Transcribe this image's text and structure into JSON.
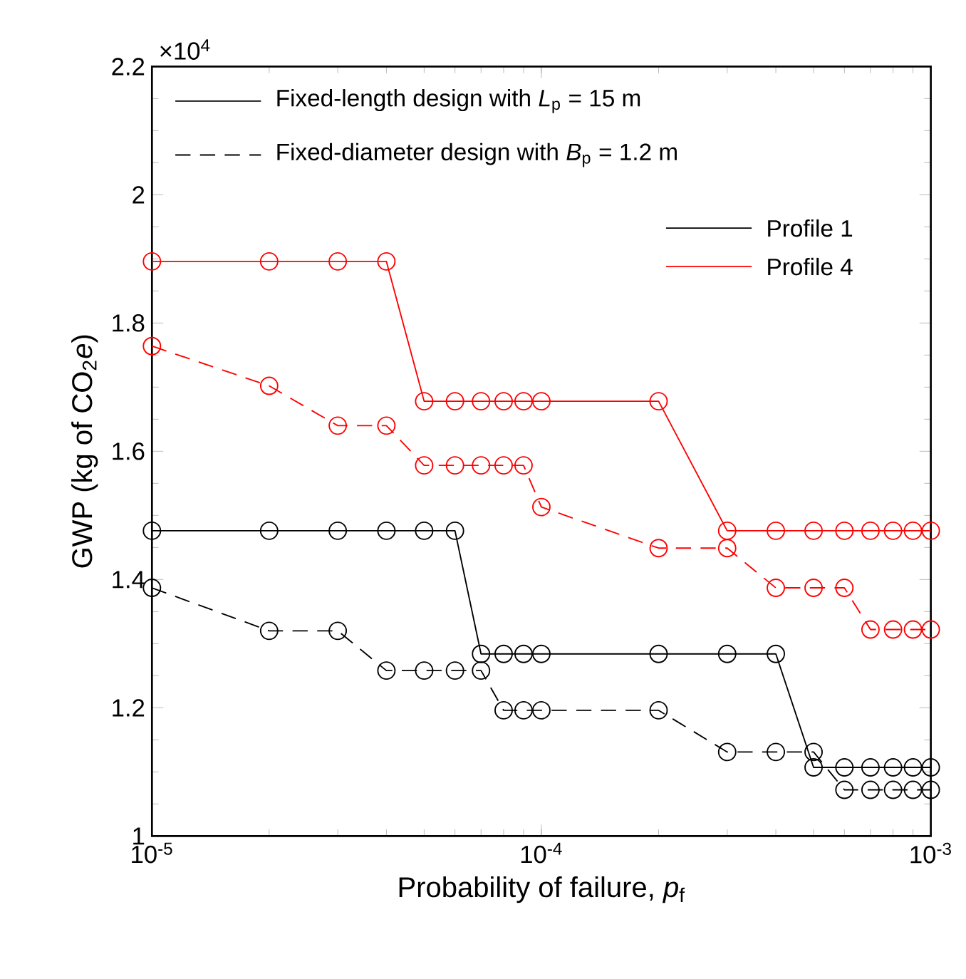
{
  "chart_data": {
    "type": "line",
    "xlabel": "Probability of failure, *p*$_{f}$",
    "ylabel": "GWP (kg of CO$_{2}$*e*)",
    "log": "x",
    "marker": "circle",
    "legend": "top right",
    "xlim": [
      1e-05,
      0.001
    ],
    "ylim": [
      1,
      2.2
    ],
    "xticks": [
      {
        "value": 1e-05,
        "label": "10$^{-5}$"
      },
      {
        "value": 0.0001,
        "label": "10$^{-4}$"
      },
      {
        "value": 0.001,
        "label": "10$^{-3}$"
      }
    ],
    "yticks": [
      1,
      1.2,
      1.4,
      1.6,
      1.8,
      2,
      2.2
    ],
    "annotations": [
      "×10$^{4}$",
      "Fixed-length design with *L*$_{p}$ = 15 m",
      "Fixed-diameter design with *B*$_{p}$ = 1.2 m"
    ],
    "x": [
      1e-05,
      2e-05,
      3e-05,
      4e-05,
      5e-05,
      6e-05,
      7e-05,
      8e-05,
      9e-05,
      0.0001,
      0.0002,
      0.0003,
      0.0004,
      0.0005,
      0.0006,
      0.0007,
      0.0008,
      0.0009,
      0.001
    ],
    "series": [
      {
        "name": "Profile 1",
        "color": "#000000",
        "line_style": "solid",
        "values": [
          1.476,
          1.476,
          1.476,
          1.476,
          1.476,
          1.476,
          1.284,
          1.284,
          1.284,
          1.284,
          1.284,
          1.284,
          1.284,
          1.107,
          1.107,
          1.107,
          1.107,
          1.107,
          1.107
        ]
      },
      {
        "name": "Profile 4",
        "color": "#ff0000",
        "line_style": "solid",
        "values": [
          1.896,
          1.896,
          1.896,
          1.896,
          1.678,
          1.678,
          1.678,
          1.678,
          1.678,
          1.678,
          1.678,
          1.476,
          1.476,
          1.476,
          1.476,
          1.476,
          1.476,
          1.476,
          1.476
        ]
      },
      {
        "color": "#000000",
        "line_style": "dashed",
        "values": [
          1.387,
          1.32,
          1.32,
          1.258,
          1.258,
          1.258,
          1.258,
          1.196,
          1.196,
          1.196,
          1.196,
          1.131,
          1.131,
          1.131,
          1.072,
          1.072,
          1.072,
          1.072,
          1.072
        ]
      },
      {
        "color": "#ff0000",
        "line_style": "dashed",
        "values": [
          1.764,
          1.702,
          1.64,
          1.64,
          1.578,
          1.578,
          1.578,
          1.578,
          1.578,
          1.513,
          1.449,
          1.449,
          1.387,
          1.387,
          1.387,
          1.322,
          1.322,
          1.322,
          1.322
        ]
      }
    ]
  }
}
